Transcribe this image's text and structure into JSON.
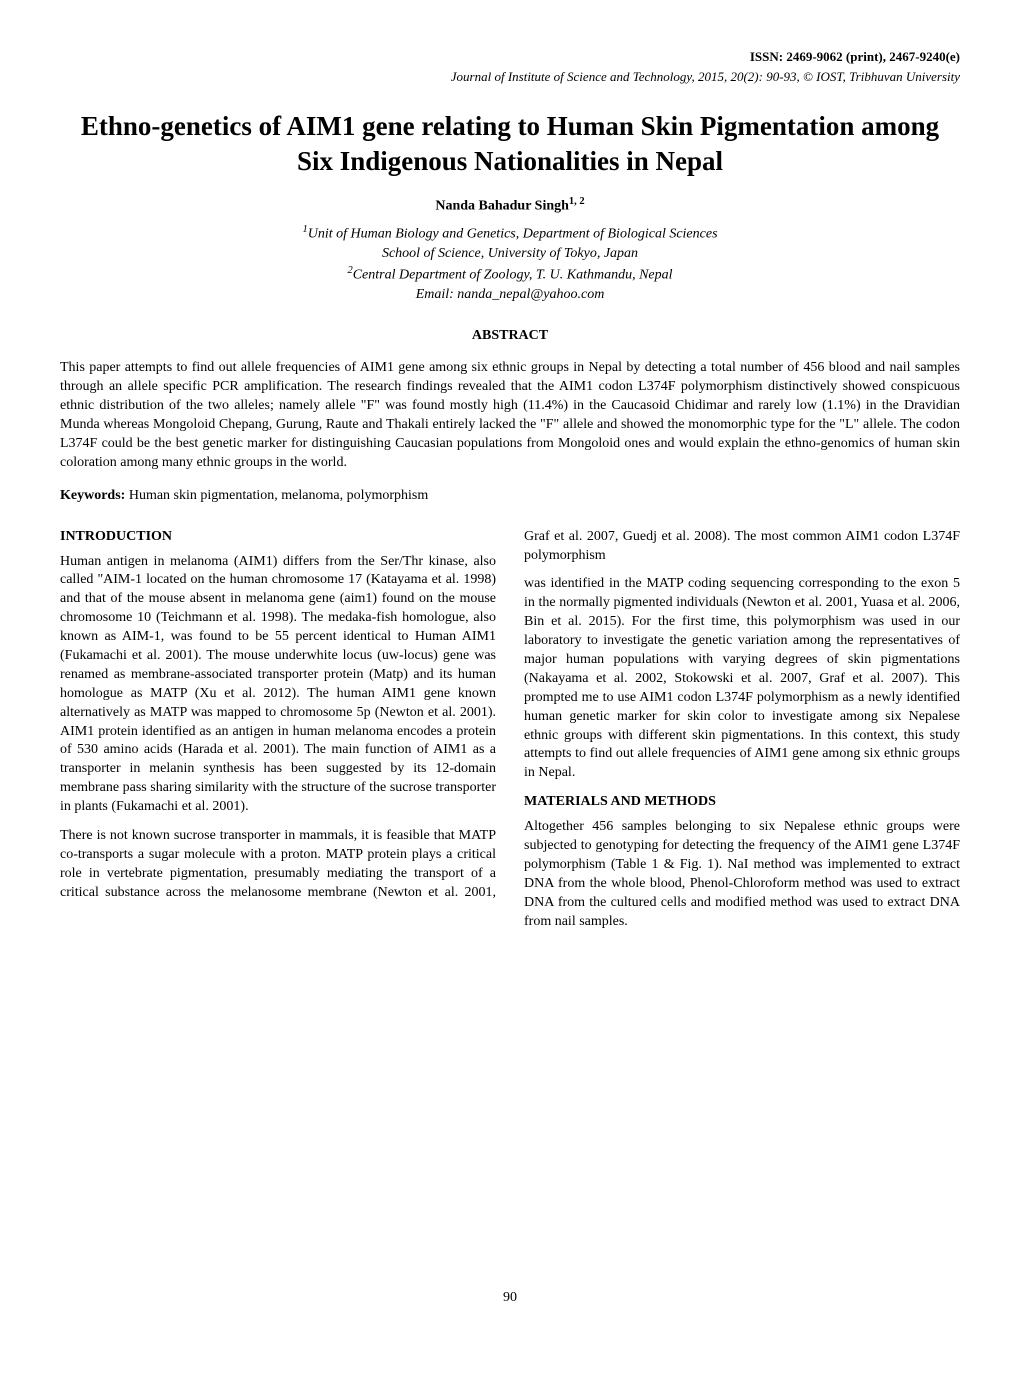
{
  "header": {
    "issn": "ISSN: 2469-9062 (print), 2467-9240(e)",
    "journal": "Journal of Institute of Science and Technology, 2015, 20(2): 90-93, © IOST, Tribhuvan University"
  },
  "title": "Ethno-genetics of AIM1 gene relating to Human Skin Pigmentation among Six Indigenous Nationalities in Nepal",
  "author": {
    "name": "Nanda Bahadur Singh",
    "sup": "1, 2"
  },
  "affiliations": {
    "line1_sup": "1",
    "line1": "Unit of Human Biology and Genetics, Department of Biological Sciences",
    "line2": "School of Science, University of Tokyo, Japan",
    "line3_sup": "2",
    "line3": "Central Department of Zoology, T. U. Kathmandu, Nepal",
    "email": "Email: nanda_nepal@yahoo.com"
  },
  "abstract": {
    "label": "ABSTRACT",
    "text": "This paper attempts to find out allele frequencies of AIM1 gene among six ethnic groups in Nepal by detecting a total number of 456 blood and nail samples through an allele specific PCR amplification. The research findings revealed that the AIM1 codon L374F polymorphism distinctively showed conspicuous ethnic distribution of the two alleles; namely allele \"F\" was found mostly high (11.4%) in the Caucasoid Chidimar and rarely low (1.1%) in the Dravidian Munda whereas Mongoloid Chepang, Gurung, Raute and Thakali entirely lacked the \"F\" allele and showed the monomorphic type for the \"L\" allele. The codon L374F could be the best genetic marker for distinguishing Caucasian populations from Mongoloid ones and would explain the ethno-genomics of human skin coloration among many ethnic groups in the world."
  },
  "keywords": {
    "label": "Keywords:",
    "text": " Human skin pigmentation, melanoma, polymorphism"
  },
  "sections": {
    "intro_head": "INTRODUCTION",
    "intro_p1": "Human antigen in melanoma (AIM1) differs from the Ser/Thr kinase, also called \"AIM-1 located on the human chromosome 17 (Katayama et al. 1998) and that of the mouse absent in melanoma gene (aim1) found on the mouse chromosome 10 (Teichmann et al. 1998). The medaka-fish homologue, also known as AIM-1, was found to be 55 percent identical to Human AIM1 (Fukamachi et al. 2001). The mouse underwhite locus (uw-locus) gene was renamed as membrane-associated transporter protein (Matp) and its human homologue as MATP (Xu et al. 2012). The human AIM1 gene known alternatively as MATP was mapped to chromosome 5p (Newton et al. 2001). AIM1 protein identified as an antigen in human melanoma encodes a protein of 530 amino acids (Harada et al. 2001). The main function of AIM1 as a transporter in melanin synthesis has been suggested by its 12-domain membrane pass sharing similarity with the structure of the sucrose transporter in plants (Fukamachi et al. 2001).",
    "intro_p2": "There is not known sucrose transporter in mammals, it is feasible that MATP co-transports a sugar molecule with a proton. MATP protein plays a critical role in vertebrate pigmentation, presumably mediating the transport of a critical substance across the melanosome membrane (Newton et al. 2001, Graf et al. 2007, Guedj et al. 2008). The most common AIM1 codon L374F polymorphism",
    "intro_p3": "was identified in the MATP coding sequencing corresponding to the exon 5 in the normally pigmented individuals (Newton et al. 2001, Yuasa et al. 2006, Bin et al. 2015). For the first time, this polymorphism was used in our laboratory to investigate the genetic variation among the representatives of major human populations with varying degrees of skin pigmentations (Nakayama et al. 2002, Stokowski et al. 2007, Graf et al. 2007). This prompted me to use AIM1 codon L374F polymorphism as a newly identified human genetic marker for skin color to investigate among six Nepalese ethnic groups with different skin pigmentations. In this context, this study attempts to find out allele frequencies of AIM1 gene among six ethnic groups in Nepal.",
    "methods_head": "MATERIALS AND METHODS",
    "methods_p1": "Altogether 456 samples belonging to six Nepalese ethnic groups were subjected to genotyping for detecting the frequency of the AIM1 gene L374F polymorphism (Table 1 & Fig. 1). NaI method was implemented to extract DNA from the whole blood, Phenol-Chloroform method was used to extract DNA from the cultured cells and modified method was used to extract DNA from nail samples."
  },
  "page_number": "90",
  "colors": {
    "text": "#000000",
    "background": "#ffffff"
  },
  "fonts": {
    "body_family": "Times New Roman",
    "body_size_pt": 10.5,
    "title_size_pt": 20,
    "header_size_pt": 10
  }
}
